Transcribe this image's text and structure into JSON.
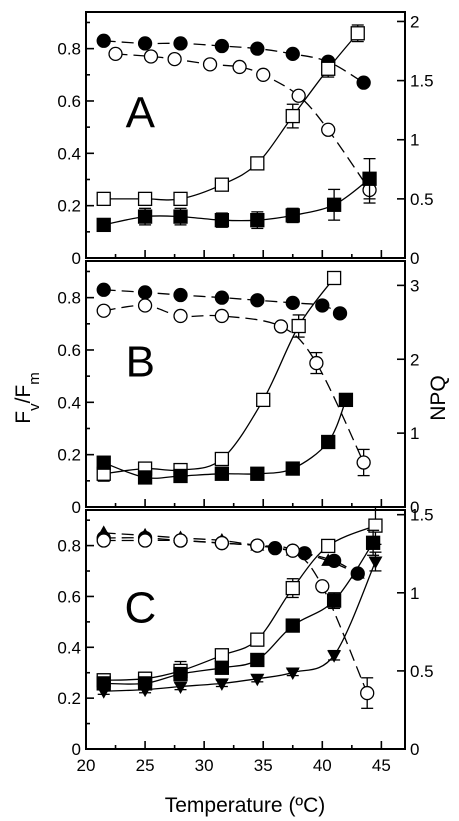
{
  "chart_data": {
    "type": "scatter",
    "xlabel": "Temperature (ºC)",
    "ylabel_left": "Fv/Fm",
    "ylabel_right": "NPQ",
    "xlim": [
      20,
      47
    ],
    "xticks": [
      20,
      25,
      30,
      35,
      40,
      45
    ],
    "panels": [
      {
        "label": "A",
        "ylim_left": [
          0,
          0.94
        ],
        "ylim_right": [
          0,
          2.08
        ],
        "yticks_left": [
          0,
          0.2,
          0.4,
          0.6,
          0.8
        ],
        "yticks_left_labels": [
          "0",
          "0.2",
          "0.4",
          "0.6",
          "0.8"
        ],
        "yticks_right": [
          0,
          0.5,
          1,
          1.5,
          2
        ],
        "yticks_right_labels": [
          "0",
          "0.5",
          "1",
          "1.5",
          "2"
        ],
        "series": [
          {
            "marker": "filled-circle",
            "axis": "left",
            "line": "dashed",
            "x": [
              21.5,
              25,
              28,
              31.5,
              34.5,
              37.5,
              40.5,
              43.5
            ],
            "y": [
              0.83,
              0.82,
              0.82,
              0.81,
              0.8,
              0.78,
              0.75,
              0.67
            ],
            "err": [
              0,
              0,
              0,
              0,
              0,
              0,
              0,
              0
            ]
          },
          {
            "marker": "open-circle",
            "axis": "left",
            "line": "dashed",
            "x": [
              22.5,
              25.5,
              27.5,
              30.5,
              33,
              35,
              38,
              40.5,
              44
            ],
            "y": [
              0.78,
              0.77,
              0.76,
              0.74,
              0.73,
              0.7,
              0.62,
              0.49,
              0.26
            ],
            "err": [
              0,
              0,
              0,
              0,
              0,
              0,
              0,
              0,
              0.05
            ]
          },
          {
            "marker": "open-square",
            "axis": "right",
            "x": [
              21.5,
              25,
              28,
              31.5,
              34.5,
              37.5,
              40.5,
              43
            ],
            "y": [
              0.5,
              0.5,
              0.5,
              0.62,
              0.8,
              1.2,
              1.6,
              1.9
            ],
            "err": [
              0,
              0,
              0,
              0,
              0.05,
              0.1,
              0.07,
              0.07
            ]
          },
          {
            "marker": "filled-square",
            "axis": "right",
            "x": [
              21.5,
              25,
              28,
              31.5,
              34.5,
              37.5,
              41,
              44
            ],
            "y": [
              0.28,
              0.35,
              0.35,
              0.32,
              0.32,
              0.36,
              0.45,
              0.67
            ],
            "err": [
              0.05,
              0.07,
              0.07,
              0.06,
              0.07,
              0.06,
              0.13,
              0.17
            ]
          }
        ]
      },
      {
        "label": "B",
        "ylim_left": [
          0,
          0.94
        ],
        "ylim_right": [
          0,
          3.33
        ],
        "yticks_left": [
          0,
          0.2,
          0.4,
          0.6,
          0.8
        ],
        "yticks_left_labels": [
          "0",
          "0.2",
          "0.4",
          "0.6",
          "0.8"
        ],
        "yticks_right": [
          0,
          1,
          2,
          3
        ],
        "yticks_right_labels": [
          "0",
          "1",
          "2",
          "3"
        ],
        "series": [
          {
            "marker": "filled-circle",
            "axis": "left",
            "line": "dashed",
            "x": [
              21.5,
              25,
              28,
              31.5,
              34.5,
              37.5,
              40,
              41.5
            ],
            "y": [
              0.83,
              0.82,
              0.81,
              0.8,
              0.79,
              0.78,
              0.77,
              0.74
            ],
            "err": [
              0,
              0,
              0,
              0,
              0,
              0,
              0,
              0
            ]
          },
          {
            "marker": "open-circle",
            "axis": "left",
            "line": "dashed",
            "x": [
              21.5,
              25,
              28,
              31.5,
              36.5,
              39.5,
              43.5
            ],
            "y": [
              0.75,
              0.77,
              0.73,
              0.73,
              0.69,
              0.55,
              0.17
            ],
            "err": [
              0,
              0,
              0,
              0,
              0,
              0.04,
              0.05
            ]
          },
          {
            "marker": "open-square",
            "axis": "right",
            "x": [
              21.5,
              25,
              28,
              31.5,
              35,
              38,
              41
            ],
            "y": [
              0.45,
              0.52,
              0.5,
              0.65,
              1.45,
              2.45,
              3.1
            ],
            "err": [
              0.1,
              0.08,
              0.08,
              0.08,
              0.03,
              0.15,
              0.04
            ]
          },
          {
            "marker": "filled-square",
            "axis": "right",
            "x": [
              21.5,
              25,
              28,
              31.5,
              34.5,
              37.5,
              40.5,
              42
            ],
            "y": [
              0.6,
              0.4,
              0.42,
              0.45,
              0.45,
              0.52,
              0.88,
              1.45
            ],
            "err": [
              0,
              0,
              0,
              0,
              0,
              0,
              0,
              0
            ]
          }
        ]
      },
      {
        "label": "C",
        "ylim_left": [
          0,
          0.94
        ],
        "ylim_right": [
          0,
          1.53
        ],
        "yticks_left": [
          0,
          0.2,
          0.4,
          0.6,
          0.8
        ],
        "yticks_left_labels": [
          "0",
          "0.2",
          "0.4",
          "0.6",
          "0.8"
        ],
        "yticks_right": [
          0,
          0.5,
          1,
          1.5
        ],
        "yticks_right_labels": [
          "0",
          "0.5",
          "1",
          "1.5"
        ],
        "series": [
          {
            "marker": "filled-triangle-up",
            "axis": "left",
            "line": "dashed",
            "x": [
              21.5,
              25,
              28,
              31.5,
              34.5,
              37.5,
              40.5,
              43
            ],
            "y": [
              0.85,
              0.84,
              0.83,
              0.82,
              0.8,
              0.78,
              0.74,
              0.69
            ],
            "err": [
              0,
              0,
              0,
              0,
              0,
              0,
              0,
              0
            ]
          },
          {
            "marker": "filled-circle",
            "axis": "left",
            "line": "dashed",
            "x": [
              21.5,
              25,
              28,
              31.5,
              34.5,
              36,
              38.5,
              41,
              43
            ],
            "y": [
              0.83,
              0.83,
              0.82,
              0.81,
              0.8,
              0.79,
              0.77,
              0.74,
              0.69
            ],
            "err": [
              0,
              0,
              0,
              0,
              0,
              0,
              0,
              0,
              0
            ]
          },
          {
            "marker": "open-circle",
            "axis": "left",
            "line": "dashed",
            "x": [
              21.5,
              25,
              28,
              31.5,
              34.5,
              37.5,
              40,
              43.8
            ],
            "y": [
              0.82,
              0.82,
              0.82,
              0.81,
              0.8,
              0.78,
              0.64,
              0.22
            ],
            "err": [
              0,
              0,
              0,
              0,
              0,
              0,
              0,
              0.06
            ]
          },
          {
            "marker": "open-square",
            "axis": "right",
            "x": [
              21.5,
              25,
              28,
              31.5,
              34.5,
              37.5,
              40.5,
              44.5
            ],
            "y": [
              0.44,
              0.45,
              0.5,
              0.6,
              0.7,
              1.03,
              1.3,
              1.43
            ],
            "err": [
              0.04,
              0.04,
              0.06,
              0.04,
              0.04,
              0.06,
              0.04,
              0.12
            ]
          },
          {
            "marker": "filled-square",
            "axis": "right",
            "x": [
              21.5,
              25,
              28,
              31.5,
              34.5,
              37.5,
              41,
              44.3
            ],
            "y": [
              0.42,
              0.42,
              0.48,
              0.52,
              0.57,
              0.79,
              0.95,
              1.32
            ],
            "err": [
              0.03,
              0.03,
              0.04,
              0.03,
              0.04,
              0.04,
              0.05,
              0.08
            ]
          },
          {
            "marker": "filled-triangle-down",
            "axis": "right",
            "x": [
              21.5,
              25,
              28,
              31.5,
              34.5,
              37.5,
              41,
              44.5
            ],
            "y": [
              0.37,
              0.38,
              0.4,
              0.42,
              0.45,
              0.49,
              0.6,
              1.2
            ],
            "err": [
              0.02,
              0.02,
              0.02,
              0.02,
              0.02,
              0.02,
              0.03,
              0.06
            ]
          }
        ]
      }
    ]
  }
}
